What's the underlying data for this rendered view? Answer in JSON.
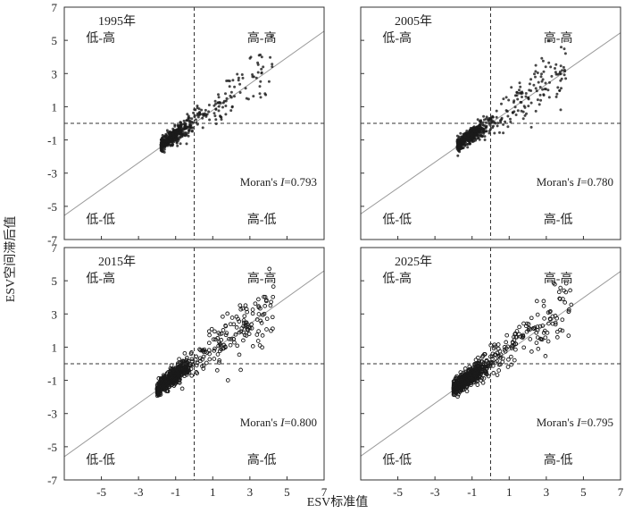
{
  "figure": {
    "ylabel": "ESV空间滞后值",
    "xlabel": "ESV标准值"
  },
  "chart_data": [
    {
      "type": "scatter",
      "title": "1995年",
      "moran_prefix": "Moran's ",
      "moran_symbol": "I",
      "moran_value": "=0.793",
      "moran_I": 0.793,
      "quadrant_labels": {
        "top_left": "低-高",
        "top_right": "高-高",
        "bottom_left": "低-低",
        "bottom_right": "高-低"
      },
      "xlim": [
        -7,
        7
      ],
      "ylim": [
        -7,
        7
      ],
      "x_ticks": [
        -5,
        -3,
        -1,
        1,
        3,
        5,
        7
      ],
      "y_ticks": [
        -7,
        -5,
        -3,
        -1,
        1,
        3,
        5,
        7
      ],
      "fit_line": {
        "slope": 0.793,
        "intercept": 0
      },
      "point_cloud": {
        "x_min": -1.8,
        "x_max": 4.2,
        "spread": 0.6,
        "count": 520
      }
    },
    {
      "type": "scatter",
      "title": "2005年",
      "moran_prefix": "Moran's ",
      "moran_symbol": "I",
      "moran_value": "=0.780",
      "moran_I": 0.78,
      "quadrant_labels": {
        "top_left": "低-高",
        "top_right": "高-高",
        "bottom_left": "低-低",
        "bottom_right": "高-低"
      },
      "xlim": [
        -7,
        7
      ],
      "ylim": [
        -7,
        7
      ],
      "x_ticks": [
        -5,
        -3,
        -1,
        1,
        3,
        5,
        7
      ],
      "y_ticks": [
        -7,
        -5,
        -3,
        -1,
        1,
        3,
        5,
        7
      ],
      "fit_line": {
        "slope": 0.78,
        "intercept": 0
      },
      "point_cloud": {
        "x_min": -1.8,
        "x_max": 4.2,
        "spread": 0.65,
        "count": 560
      }
    },
    {
      "type": "scatter",
      "title": "2015年",
      "moran_prefix": "Moran's ",
      "moran_symbol": "I",
      "moran_value": "=0.800",
      "moran_I": 0.8,
      "quadrant_labels": {
        "top_left": "低-高",
        "top_right": "高-高",
        "bottom_left": "低-低",
        "bottom_right": "高-低"
      },
      "xlim": [
        -7,
        7
      ],
      "ylim": [
        -7,
        7
      ],
      "x_ticks": [
        -5,
        -3,
        -1,
        1,
        3,
        5,
        7
      ],
      "y_ticks": [
        -7,
        -5,
        -3,
        -1,
        1,
        3,
        5,
        7
      ],
      "fit_line": {
        "slope": 0.8,
        "intercept": 0
      },
      "point_cloud": {
        "x_min": -2.0,
        "x_max": 4.3,
        "spread": 0.7,
        "count": 600
      }
    },
    {
      "type": "scatter",
      "title": "2025年",
      "moran_prefix": "Moran's ",
      "moran_symbol": "I",
      "moran_value": "=0.795",
      "moran_I": 0.795,
      "quadrant_labels": {
        "top_left": "低-高",
        "top_right": "高-高",
        "bottom_left": "低-低",
        "bottom_right": "高-低"
      },
      "xlim": [
        -7,
        7
      ],
      "ylim": [
        -7,
        7
      ],
      "x_ticks": [
        -5,
        -3,
        -1,
        1,
        3,
        5,
        7
      ],
      "y_ticks": [
        -7,
        -5,
        -3,
        -1,
        1,
        3,
        5,
        7
      ],
      "fit_line": {
        "slope": 0.795,
        "intercept": 0
      },
      "point_cloud": {
        "x_min": -2.0,
        "x_max": 4.4,
        "spread": 0.7,
        "count": 620
      }
    }
  ],
  "colors": {
    "point": "#1a1a1a",
    "fit_line": "#9a9a9a",
    "frame": "#333333",
    "dash": "#333333"
  }
}
